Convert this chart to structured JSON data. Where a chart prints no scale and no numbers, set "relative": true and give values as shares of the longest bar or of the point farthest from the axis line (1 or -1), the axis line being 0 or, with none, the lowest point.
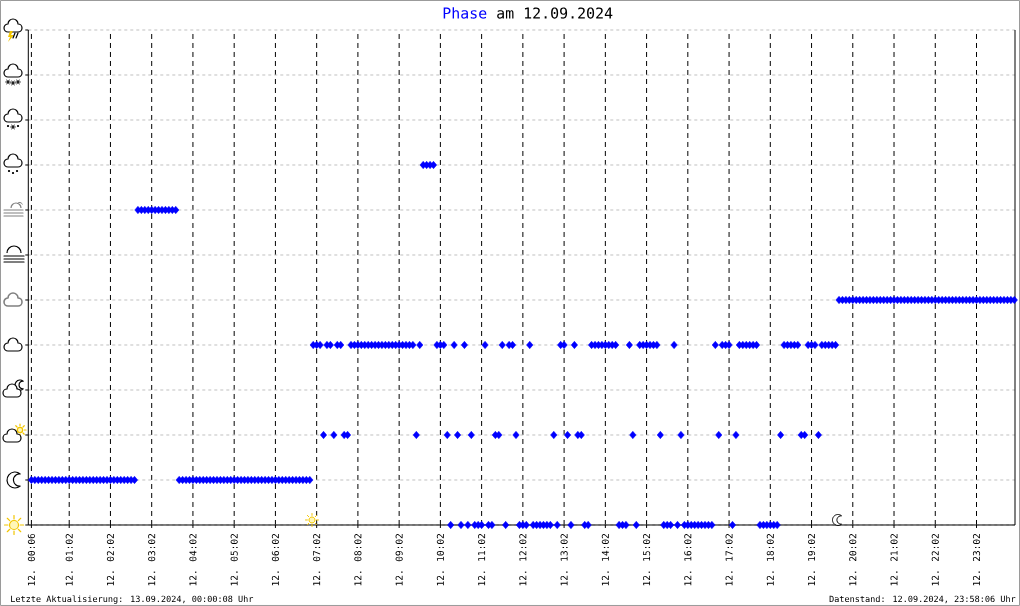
{
  "chart_data": {
    "type": "scatter",
    "title": "am 12.09.2024",
    "relative": true,
    "marker": "diamond",
    "grid": true,
    "categories": [
      "12. 00:06",
      null,
      null,
      null,
      null,
      null,
      null,
      null,
      null,
      null,
      null,
      "12. 01:02",
      null,
      null,
      null,
      null,
      null,
      null,
      null,
      null,
      null,
      null,
      null,
      "12. 02:02",
      null,
      null,
      null,
      null,
      null,
      null,
      null,
      null,
      null,
      null,
      null,
      "12. 03:02",
      null,
      null,
      null,
      null,
      null,
      null,
      null,
      null,
      null,
      null,
      null,
      "12. 04:02",
      null,
      null,
      null,
      null,
      null,
      null,
      null,
      null,
      null,
      null,
      null,
      "12. 05:02",
      null,
      null,
      null,
      null,
      null,
      null,
      null,
      null,
      null,
      null,
      null,
      "12. 06:02",
      null,
      null,
      null,
      null,
      null,
      null,
      null,
      null,
      null,
      null,
      null,
      "12. 07:02",
      null,
      null,
      null,
      null,
      null,
      null,
      null,
      null,
      null,
      null,
      null,
      "12. 08:02",
      null,
      null,
      null,
      null,
      null,
      null,
      null,
      null,
      null,
      null,
      null,
      "12. 09:02",
      null,
      null,
      null,
      null,
      null,
      null,
      null,
      null,
      null,
      null,
      null,
      "12. 10:02",
      null,
      null,
      null,
      null,
      null,
      null,
      null,
      null,
      null,
      null,
      null,
      "12. 11:02",
      null,
      null,
      null,
      null,
      null,
      null,
      null,
      null,
      null,
      null,
      null,
      "12. 12:02",
      null,
      null,
      null,
      null,
      null,
      null,
      null,
      null,
      null,
      null,
      null,
      "12. 13:02",
      null,
      null,
      null,
      null,
      null,
      null,
      null,
      null,
      null,
      null,
      null,
      "12. 14:02",
      null,
      null,
      null,
      null,
      null,
      null,
      null,
      null,
      null,
      null,
      null,
      "12. 15:02",
      null,
      null,
      null,
      null,
      null,
      null,
      null,
      null,
      null,
      null,
      null,
      "12. 16:02",
      null,
      null,
      null,
      null,
      null,
      null,
      null,
      null,
      null,
      null,
      null,
      "12. 17:02",
      null,
      null,
      null,
      null,
      null,
      null,
      null,
      null,
      null,
      null,
      null,
      "12. 18:02",
      null,
      null,
      null,
      null,
      null,
      null,
      null,
      null,
      null,
      null,
      null,
      "12. 19:02",
      null,
      null,
      null,
      null,
      null,
      null,
      null,
      null,
      null,
      null,
      null,
      "12. 20:02",
      null,
      null,
      null,
      null,
      null,
      null,
      null,
      null,
      null,
      null,
      null,
      "12. 21:02",
      null,
      null,
      null,
      null,
      null,
      null,
      null,
      null,
      null,
      null,
      null,
      "12. 22:02",
      null,
      null,
      null,
      null,
      null,
      null,
      null,
      null,
      null,
      null,
      null,
      "12. 23:02",
      null,
      null,
      null,
      null,
      null,
      null,
      null,
      null,
      null,
      null,
      null
    ],
    "annotations": [
      "Letzte Aktualisierung: 13.09.2024, 00:00:08 Uhr",
      "Datenstand: 12.09.2024, 23:58:06 Uhr"
    ],
    "series": [
      {
        "name": "Phase",
        "color": "#0000ff",
        "values": [
          0.125,
          0.125,
          0.125,
          0.125,
          0.125,
          0.125,
          0.125,
          0.125,
          0.125,
          0.125,
          0.125,
          0.125,
          0.125,
          0.125,
          0.125,
          0.125,
          0.125,
          0.125,
          0.125,
          0.125,
          0.125,
          0.125,
          0.125,
          0.125,
          0.125,
          0.125,
          0.125,
          0.125,
          0.125,
          0.125,
          0.125,
          0.875,
          0.875,
          0.875,
          0.875,
          0.875,
          0.875,
          0.875,
          0.875,
          0.875,
          0.875,
          0.875,
          0.875,
          0.125,
          0.125,
          0.125,
          0.125,
          0.125,
          0.125,
          0.125,
          0.125,
          0.125,
          0.125,
          0.125,
          0.125,
          0.125,
          0.125,
          0.125,
          0.125,
          0.125,
          0.125,
          0.125,
          0.125,
          0.125,
          0.125,
          0.125,
          0.125,
          0.125,
          0.125,
          0.125,
          0.125,
          0.125,
          0.125,
          0.125,
          0.125,
          0.125,
          0.125,
          0.125,
          0.125,
          0.125,
          0.125,
          0.125,
          0.5,
          0.5,
          0.5,
          0.25,
          0.5,
          0.5,
          0.25,
          0.5,
          0.5,
          0.25,
          0.25,
          0.5,
          0.5,
          0.5,
          0.5,
          0.5,
          0.5,
          0.5,
          0.5,
          0.5,
          0.5,
          0.5,
          0.5,
          0.5,
          0.5,
          0.5,
          0.5,
          0.5,
          0.5,
          0.5,
          0.25,
          0.5,
          1,
          1,
          1,
          1,
          0.5,
          0.5,
          0.5,
          0.25,
          0,
          0.5,
          0.25,
          0,
          0.5,
          0,
          0.25,
          0,
          0,
          0,
          0.5,
          0,
          0,
          0.25,
          0.25,
          0.5,
          0,
          0.5,
          0.5,
          0.25,
          0,
          0,
          0,
          0.5,
          0,
          0,
          0,
          0,
          0,
          0,
          0.25,
          0,
          0.5,
          0.5,
          0.25,
          0,
          0.5,
          0.25,
          0.25,
          0,
          0,
          0.5,
          0.5,
          0.5,
          0.5,
          0.5,
          0.5,
          0.5,
          0.5,
          0,
          0,
          0,
          0.5,
          0.25,
          0,
          0.5,
          0.5,
          0.5,
          0.5,
          0.5,
          0.5,
          0.25,
          0,
          0,
          0,
          0.5,
          0,
          0.25,
          0,
          0,
          0,
          0,
          0,
          0,
          0,
          0,
          0,
          0.5,
          0.25,
          0.5,
          0.5,
          0.5,
          0,
          0.25,
          0.5,
          0.5,
          0.5,
          0.5,
          0.5,
          0.5,
          0,
          0,
          0,
          0,
          0,
          0,
          0.25,
          0.5,
          0.5,
          0.5,
          0.5,
          0.5,
          0.25,
          0.25,
          0.5,
          0.5,
          0.5,
          0.25,
          0.5,
          0.5,
          0.5,
          0.5,
          0.5,
          0.625,
          0.625,
          0.625,
          0.625,
          0.625,
          0.625,
          0.625,
          0.625,
          0.625,
          0.625,
          0.625,
          0.625,
          0.625,
          0.625,
          0.625,
          0.625,
          0.625,
          0.625,
          0.625,
          0.625,
          0.625,
          0.625,
          0.625,
          0.625,
          0.625,
          0.625,
          0.625,
          0.625,
          0.625,
          0.625,
          0.625,
          0.625,
          0.625,
          0.625,
          0.625,
          0.625,
          0.625,
          0.625,
          0.625,
          0.625,
          0.625,
          0.625,
          0.625,
          0.625,
          0.625,
          0.625,
          0.625,
          0.625,
          0.625,
          0.625,
          0.625,
          0.625
        ]
      }
    ]
  }
}
